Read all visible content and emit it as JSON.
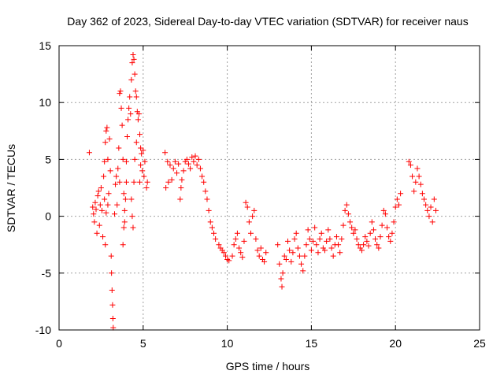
{
  "chart_data": {
    "type": "scatter",
    "title": "Day 362 of 2023, Sidereal Day-to-day VTEC variation (SDTVAR) for receiver naus",
    "xlabel": "GPS time / hours",
    "ylabel": "SDTVAR / TECUs",
    "xlim": [
      0,
      25
    ],
    "ylim": [
      -10,
      15
    ],
    "xticks": [
      0,
      5,
      10,
      15,
      20,
      25
    ],
    "yticks": [
      -10,
      -5,
      0,
      5,
      10,
      15
    ],
    "grid": true,
    "marker": "+",
    "series": [
      {
        "name": "SDTVAR",
        "color": "#ff0000",
        "points": [
          [
            1.8,
            5.6
          ],
          [
            2.0,
            0.8
          ],
          [
            2.05,
            0.2
          ],
          [
            2.1,
            -0.5
          ],
          [
            2.15,
            1.2
          ],
          [
            2.2,
            0.6
          ],
          [
            2.25,
            -1.5
          ],
          [
            2.3,
            1.8
          ],
          [
            2.35,
            2.2
          ],
          [
            2.4,
            -0.8
          ],
          [
            2.45,
            1.0
          ],
          [
            2.5,
            2.5
          ],
          [
            2.55,
            0.5
          ],
          [
            2.6,
            -1.8
          ],
          [
            2.65,
            3.5
          ],
          [
            2.7,
            4.8
          ],
          [
            2.75,
            6.5
          ],
          [
            2.8,
            7.5
          ],
          [
            2.85,
            7.8
          ],
          [
            2.9,
            5.0
          ],
          [
            2.95,
            2.0
          ],
          [
            2.7,
            1.5
          ],
          [
            2.75,
            -2.5
          ],
          [
            2.8,
            0.3
          ],
          [
            2.9,
            1.0
          ],
          [
            3.0,
            6.8
          ],
          [
            3.05,
            4.0
          ],
          [
            3.1,
            -3.5
          ],
          [
            3.12,
            -5.0
          ],
          [
            3.15,
            -6.5
          ],
          [
            3.18,
            -7.8
          ],
          [
            3.2,
            -9.0
          ],
          [
            3.22,
            -9.8
          ],
          [
            3.3,
            0.2
          ],
          [
            3.35,
            2.8
          ],
          [
            3.4,
            3.5
          ],
          [
            3.45,
            1.0
          ],
          [
            3.5,
            4.2
          ],
          [
            3.55,
            6.0
          ],
          [
            3.6,
            3.0
          ],
          [
            3.6,
            10.8
          ],
          [
            3.65,
            11.0
          ],
          [
            3.7,
            9.5
          ],
          [
            3.75,
            8.0
          ],
          [
            3.8,
            5.0
          ],
          [
            3.85,
            2.0
          ],
          [
            3.9,
            -0.5
          ],
          [
            3.95,
            1.5
          ],
          [
            4.0,
            3.0
          ],
          [
            3.8,
            -2.5
          ],
          [
            3.85,
            -1.0
          ],
          [
            3.9,
            0.5
          ],
          [
            4.0,
            4.8
          ],
          [
            4.05,
            7.0
          ],
          [
            4.1,
            8.5
          ],
          [
            4.15,
            9.5
          ],
          [
            4.2,
            10.5
          ],
          [
            4.25,
            9.0
          ],
          [
            4.3,
            12.0
          ],
          [
            4.35,
            13.5
          ],
          [
            4.4,
            14.2
          ],
          [
            4.45,
            13.8
          ],
          [
            4.5,
            12.5
          ],
          [
            4.55,
            11.0
          ],
          [
            4.6,
            10.5
          ],
          [
            4.65,
            9.2
          ],
          [
            4.3,
            1.5
          ],
          [
            4.35,
            0.0
          ],
          [
            4.4,
            -1.0
          ],
          [
            4.45,
            3.0
          ],
          [
            4.5,
            5.0
          ],
          [
            4.6,
            6.5
          ],
          [
            4.7,
            8.5
          ],
          [
            4.75,
            9.0
          ],
          [
            4.8,
            7.2
          ],
          [
            4.85,
            6.0
          ],
          [
            4.8,
            3.0
          ],
          [
            4.85,
            4.5
          ],
          [
            4.9,
            5.5
          ],
          [
            4.95,
            4.0
          ],
          [
            5.0,
            5.8
          ],
          [
            5.05,
            3.5
          ],
          [
            5.1,
            4.8
          ],
          [
            5.2,
            2.5
          ],
          [
            5.25,
            3.0
          ],
          [
            6.3,
            5.6
          ],
          [
            6.35,
            2.5
          ],
          [
            6.45,
            4.8
          ],
          [
            6.5,
            3.0
          ],
          [
            6.6,
            4.5
          ],
          [
            6.7,
            3.2
          ],
          [
            6.8,
            4.2
          ],
          [
            6.9,
            4.8
          ],
          [
            7.0,
            3.8
          ],
          [
            7.1,
            4.6
          ],
          [
            7.2,
            1.5
          ],
          [
            7.25,
            2.5
          ],
          [
            7.3,
            3.2
          ],
          [
            7.4,
            4.0
          ],
          [
            7.5,
            4.8
          ],
          [
            7.6,
            5.0
          ],
          [
            7.7,
            4.6
          ],
          [
            7.8,
            4.2
          ],
          [
            7.9,
            5.2
          ],
          [
            8.0,
            4.8
          ],
          [
            8.1,
            5.3
          ],
          [
            8.2,
            4.5
          ],
          [
            8.3,
            5.0
          ],
          [
            8.4,
            4.2
          ],
          [
            8.5,
            3.5
          ],
          [
            8.6,
            3.0
          ],
          [
            8.7,
            2.2
          ],
          [
            8.8,
            1.5
          ],
          [
            8.9,
            0.5
          ],
          [
            9.0,
            -0.5
          ],
          [
            9.1,
            -1.0
          ],
          [
            9.2,
            -1.5
          ],
          [
            9.3,
            -2.0
          ],
          [
            9.5,
            -2.5
          ],
          [
            9.6,
            -2.8
          ],
          [
            9.7,
            -3.0
          ],
          [
            9.8,
            -3.2
          ],
          [
            9.9,
            -3.5
          ],
          [
            10.0,
            -3.8
          ],
          [
            10.1,
            -3.9
          ],
          [
            10.3,
            -3.5
          ],
          [
            10.4,
            -2.5
          ],
          [
            10.5,
            -2.0
          ],
          [
            10.6,
            -1.5
          ],
          [
            10.7,
            -2.8
          ],
          [
            10.8,
            -3.2
          ],
          [
            10.9,
            -3.6
          ],
          [
            11.0,
            -2.2
          ],
          [
            11.1,
            1.2
          ],
          [
            11.2,
            0.8
          ],
          [
            11.3,
            -0.5
          ],
          [
            11.4,
            -1.5
          ],
          [
            11.5,
            0.0
          ],
          [
            11.6,
            0.5
          ],
          [
            11.7,
            -2.0
          ],
          [
            11.8,
            -3.0
          ],
          [
            11.9,
            -3.5
          ],
          [
            12.0,
            -2.8
          ],
          [
            12.1,
            -3.8
          ],
          [
            12.2,
            -4.0
          ],
          [
            12.3,
            -3.2
          ],
          [
            13.0,
            -2.5
          ],
          [
            13.1,
            -4.2
          ],
          [
            13.2,
            -5.5
          ],
          [
            13.25,
            -6.2
          ],
          [
            13.3,
            -5.0
          ],
          [
            13.4,
            -3.5
          ],
          [
            13.5,
            -3.8
          ],
          [
            13.6,
            -2.2
          ],
          [
            13.7,
            -3.0
          ],
          [
            13.8,
            -4.0
          ],
          [
            13.9,
            -3.2
          ],
          [
            14.0,
            -2.0
          ],
          [
            14.1,
            -1.5
          ],
          [
            14.2,
            -2.8
          ],
          [
            14.3,
            -3.5
          ],
          [
            14.4,
            -4.2
          ],
          [
            14.5,
            -4.8
          ],
          [
            14.6,
            -3.5
          ],
          [
            14.7,
            -2.5
          ],
          [
            14.8,
            -1.2
          ],
          [
            14.9,
            -2.0
          ],
          [
            15.0,
            -3.0
          ],
          [
            15.1,
            -2.2
          ],
          [
            15.2,
            -1.0
          ],
          [
            15.3,
            -2.5
          ],
          [
            15.4,
            -3.2
          ],
          [
            15.5,
            -2.0
          ],
          [
            15.6,
            -1.5
          ],
          [
            15.7,
            -2.8
          ],
          [
            15.8,
            -3.0
          ],
          [
            15.9,
            -2.2
          ],
          [
            16.0,
            -1.2
          ],
          [
            16.1,
            -2.0
          ],
          [
            16.2,
            -2.8
          ],
          [
            16.3,
            -3.5
          ],
          [
            16.4,
            -2.5
          ],
          [
            16.5,
            -1.8
          ],
          [
            16.6,
            -2.5
          ],
          [
            16.7,
            -3.2
          ],
          [
            16.8,
            -2.0
          ],
          [
            16.9,
            -0.8
          ],
          [
            17.0,
            0.5
          ],
          [
            17.1,
            1.0
          ],
          [
            17.2,
            0.2
          ],
          [
            17.3,
            -0.5
          ],
          [
            17.4,
            -1.0
          ],
          [
            17.5,
            -1.5
          ],
          [
            17.6,
            -1.2
          ],
          [
            17.7,
            -2.0
          ],
          [
            17.8,
            -2.5
          ],
          [
            17.9,
            -2.8
          ],
          [
            18.0,
            -3.0
          ],
          [
            18.1,
            -2.5
          ],
          [
            18.2,
            -1.8
          ],
          [
            18.3,
            -2.2
          ],
          [
            18.4,
            -2.6
          ],
          [
            18.5,
            -1.5
          ],
          [
            18.6,
            -0.5
          ],
          [
            18.7,
            -1.2
          ],
          [
            18.8,
            -2.0
          ],
          [
            18.9,
            -2.5
          ],
          [
            19.0,
            -2.8
          ],
          [
            19.1,
            -1.8
          ],
          [
            19.2,
            -0.8
          ],
          [
            19.3,
            0.5
          ],
          [
            19.4,
            0.2
          ],
          [
            19.5,
            -1.0
          ],
          [
            19.6,
            -1.8
          ],
          [
            19.7,
            -2.2
          ],
          [
            19.8,
            -1.5
          ],
          [
            19.9,
            -0.5
          ],
          [
            20.0,
            0.8
          ],
          [
            20.1,
            1.5
          ],
          [
            20.2,
            1.0
          ],
          [
            20.3,
            2.0
          ],
          [
            20.8,
            4.8
          ],
          [
            20.9,
            4.5
          ],
          [
            21.0,
            3.5
          ],
          [
            21.1,
            2.2
          ],
          [
            21.2,
            3.0
          ],
          [
            21.3,
            4.2
          ],
          [
            21.4,
            3.5
          ],
          [
            21.5,
            2.8
          ],
          [
            21.6,
            2.0
          ],
          [
            21.7,
            1.5
          ],
          [
            21.8,
            1.0
          ],
          [
            21.9,
            0.5
          ],
          [
            22.0,
            0.0
          ],
          [
            22.1,
            0.8
          ],
          [
            22.2,
            -0.5
          ],
          [
            22.3,
            1.5
          ],
          [
            22.4,
            0.5
          ]
        ]
      }
    ]
  }
}
